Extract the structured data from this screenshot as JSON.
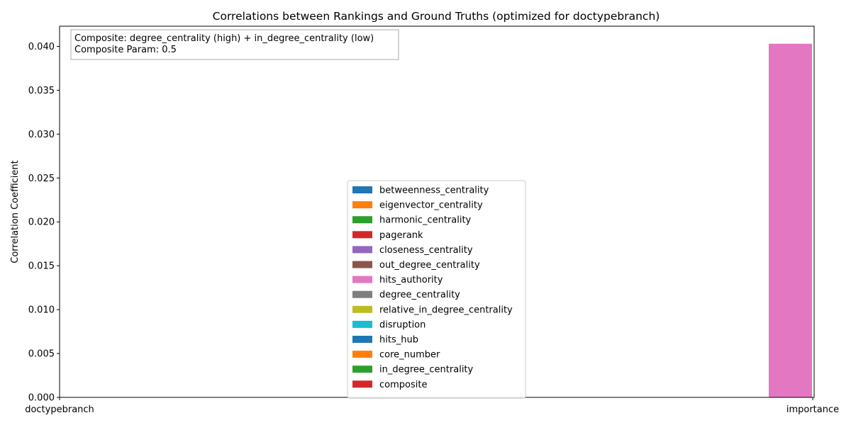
{
  "chart_data": {
    "type": "bar",
    "title": "Correlations between Rankings and Ground Truths (optimized for doctypebranch)",
    "xlabel": "",
    "ylabel": "Correlation Coefficient",
    "categories": [
      "doctypebranch",
      "importance"
    ],
    "ylim": [
      0,
      0.0423
    ],
    "yticks": [
      "0.000",
      "0.005",
      "0.010",
      "0.015",
      "0.020",
      "0.025",
      "0.030",
      "0.035",
      "0.040"
    ],
    "grid": false,
    "legend_location": "lower center",
    "annotation": [
      "Composite: degree_centrality (high) + in_degree_centrality (low)",
      "Composite Param: 0.5"
    ],
    "series": [
      {
        "name": "betweenness_centrality",
        "color": "#1f77b4",
        "values": [
          0,
          0
        ]
      },
      {
        "name": "eigenvector_centrality",
        "color": "#ff7f0e",
        "values": [
          0,
          0
        ]
      },
      {
        "name": "harmonic_centrality",
        "color": "#2ca02c",
        "values": [
          0,
          0
        ]
      },
      {
        "name": "pagerank",
        "color": "#d62728",
        "values": [
          0,
          0
        ]
      },
      {
        "name": "closeness_centrality",
        "color": "#9467bd",
        "values": [
          0,
          0
        ]
      },
      {
        "name": "out_degree_centrality",
        "color": "#8c564b",
        "values": [
          0,
          0
        ]
      },
      {
        "name": "hits_authority",
        "color": "#e377c2",
        "values": [
          0,
          0.0403
        ]
      },
      {
        "name": "degree_centrality",
        "color": "#7f7f7f",
        "values": [
          0,
          0
        ]
      },
      {
        "name": "relative_in_degree_centrality",
        "color": "#bcbd22",
        "values": [
          0,
          0
        ]
      },
      {
        "name": "disruption",
        "color": "#17becf",
        "values": [
          0,
          0
        ]
      },
      {
        "name": "hits_hub",
        "color": "#1f77b4",
        "values": [
          0,
          0
        ]
      },
      {
        "name": "core_number",
        "color": "#ff7f0e",
        "values": [
          0,
          0
        ]
      },
      {
        "name": "in_degree_centrality",
        "color": "#2ca02c",
        "values": [
          0,
          0
        ]
      },
      {
        "name": "composite",
        "color": "#d62728",
        "values": [
          0,
          0
        ]
      }
    ]
  }
}
